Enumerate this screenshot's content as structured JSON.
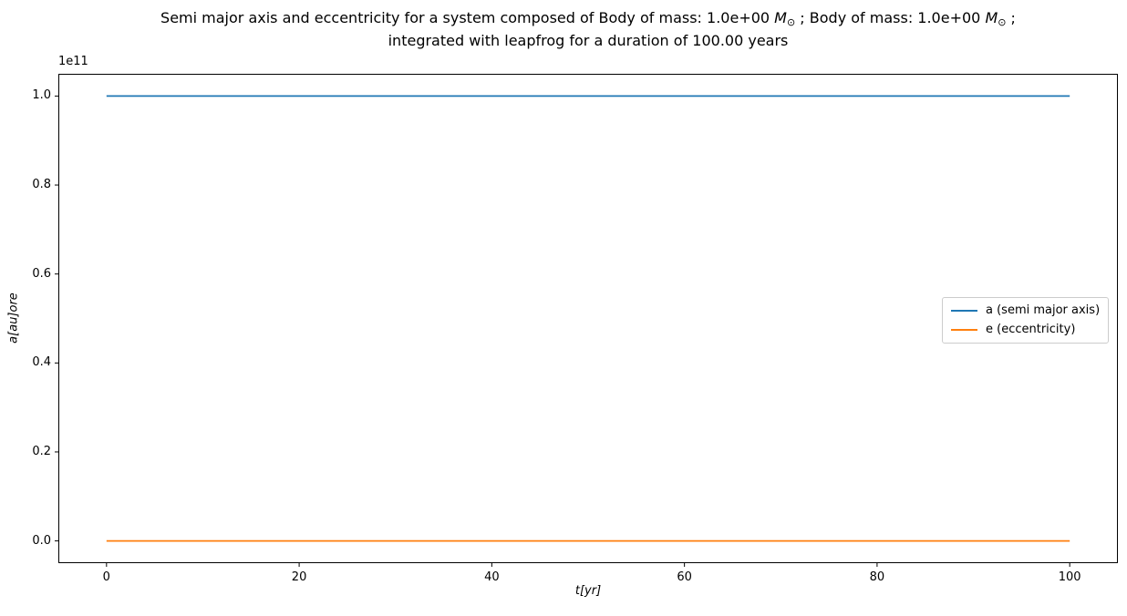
{
  "title": {
    "prefix": "Semi major axis and eccentricity for a system composed of Body of mass: 1.0e+00 ",
    "mass_symbol_1": "M",
    "mass_subscript_1": "⊙",
    "middle": " ; Body of mass: 1.0e+00 ",
    "mass_symbol_2": "M",
    "mass_subscript_2": "⊙",
    "end": " ;",
    "line2": "integrated with leapfrog for a duration of 100.00 years"
  },
  "chart_data": {
    "type": "line",
    "title": "Semi major axis and eccentricity for a system composed of Body of mass: 1.0e+00 M⊙ ; Body of mass: 1.0e+00 M⊙ ; integrated with leapfrog for a duration of 100.00 years",
    "xlabel": "t[yr]",
    "ylabel": "a[au]ore",
    "y_offset_label": "1e11",
    "x": [
      0,
      20,
      40,
      60,
      80,
      100
    ],
    "series": [
      {
        "name": "a (semi major axis)",
        "color": "#1f77b4",
        "values": [
          1.0,
          1.0,
          1.0,
          1.0,
          1.0,
          1.0
        ]
      },
      {
        "name": "e (eccentricity)",
        "color": "#ff7f0e",
        "values": [
          0.0,
          0.0,
          0.0,
          0.0,
          0.0,
          0.0
        ]
      }
    ],
    "y_scale_factor": "1e11",
    "xlim": [
      -5,
      105
    ],
    "ylim": [
      -0.05,
      1.05
    ],
    "x_ticks": [
      0,
      20,
      40,
      60,
      80,
      100
    ],
    "y_ticks": [
      0.0,
      0.2,
      0.4,
      0.6,
      0.8,
      1.0
    ],
    "grid": false,
    "legend_position": "center right"
  }
}
